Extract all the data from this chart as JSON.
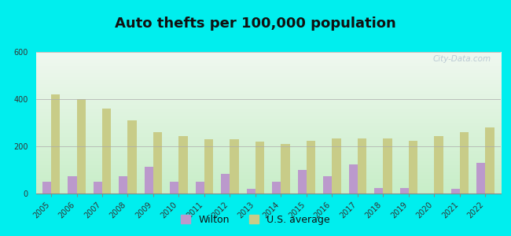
{
  "title": "Auto thefts per 100,000 population",
  "years": [
    2005,
    2006,
    2007,
    2008,
    2009,
    2010,
    2011,
    2012,
    2013,
    2014,
    2015,
    2016,
    2017,
    2018,
    2019,
    2020,
    2021,
    2022
  ],
  "wilton": [
    50,
    75,
    50,
    75,
    115,
    50,
    50,
    85,
    20,
    50,
    100,
    75,
    125,
    25,
    25,
    0,
    20,
    130
  ],
  "us_avg": [
    420,
    400,
    360,
    310,
    260,
    245,
    230,
    230,
    220,
    210,
    225,
    235,
    235,
    235,
    225,
    245,
    260,
    280
  ],
  "ylim": [
    0,
    600
  ],
  "yticks": [
    0,
    200,
    400,
    600
  ],
  "wilton_color": "#bb99cc",
  "us_avg_color": "#c8cc88",
  "outer_bg": "#00eeee",
  "bar_width": 0.35,
  "title_fontsize": 13,
  "tick_fontsize": 7,
  "legend_fontsize": 9,
  "watermark": "City-Data.com",
  "grad_top": "#f0f8f0",
  "grad_bottom": "#c8eec8"
}
